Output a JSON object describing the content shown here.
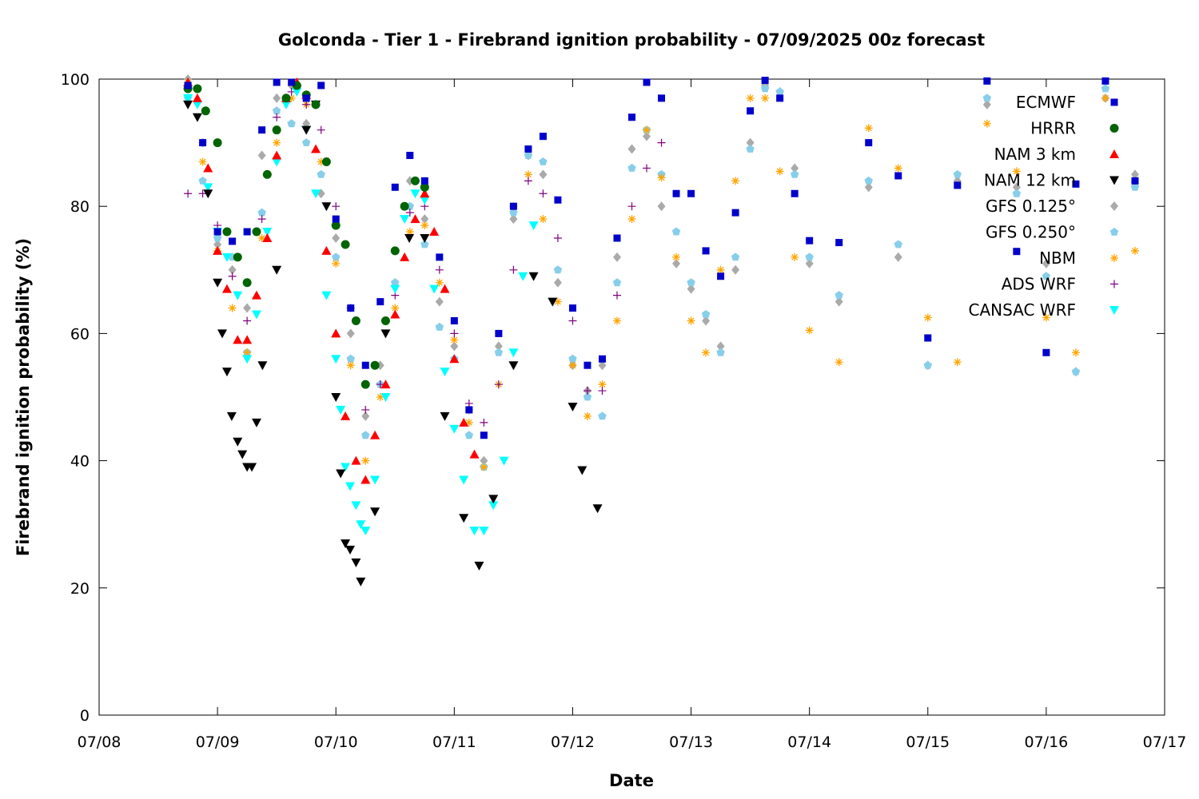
{
  "chart_data": {
    "type": "scatter",
    "title": "Golconda - Tier 1 - Firebrand ignition probability - 07/09/2025 00z forecast",
    "xlabel": "Date",
    "ylabel": "Firebrand ignition probability (%)",
    "x_ticks": [
      "07/08",
      "07/09",
      "07/10",
      "07/11",
      "07/12",
      "07/13",
      "07/14",
      "07/15",
      "07/16",
      "07/17"
    ],
    "y_ticks": [
      "0",
      "20",
      "40",
      "60",
      "80",
      "100"
    ],
    "xlim": [
      0,
      9
    ],
    "ylim": [
      0,
      100
    ],
    "x_unit": "days after 07/08 00z",
    "grid": false,
    "legend_position": "top-right",
    "series": [
      {
        "name": "ECMWF",
        "marker": "square",
        "color": "#0000cc",
        "x": [
          0.75,
          0.875,
          1.0,
          1.125,
          1.25,
          1.375,
          1.5,
          1.625,
          1.75,
          1.875,
          2.0,
          2.125,
          2.25,
          2.375,
          2.5,
          2.625,
          2.75,
          2.875,
          3.0,
          3.125,
          3.25,
          3.375,
          3.5,
          3.625,
          3.75,
          3.875,
          4.0,
          4.125,
          4.25,
          4.375,
          4.5,
          4.625,
          4.75,
          4.875,
          5.0,
          5.125,
          5.25,
          5.375,
          5.5,
          5.625,
          5.75,
          5.875,
          6.0,
          6.25,
          6.5,
          6.75,
          7.0,
          7.25,
          7.5,
          7.75,
          8.0,
          8.25,
          8.5,
          8.75
        ],
        "y": [
          99,
          90,
          76,
          74.5,
          76,
          92,
          99.5,
          99.5,
          97,
          99,
          78,
          64,
          55,
          65,
          83,
          88,
          84,
          72,
          62,
          48,
          44,
          60,
          80,
          89,
          91,
          81,
          64,
          55,
          56,
          75,
          94,
          99.5,
          97,
          82,
          82,
          73,
          69,
          79,
          95,
          99.8,
          97,
          82,
          74.6,
          74.3,
          90,
          84.8,
          59.3,
          83.3,
          99.7,
          72.9,
          57,
          83.5,
          99.7,
          84
        ]
      },
      {
        "name": "HRRR",
        "marker": "circle",
        "color": "#006400",
        "x": [
          0.75,
          0.83,
          0.9,
          1.0,
          1.08,
          1.17,
          1.25,
          1.33,
          1.42,
          1.5,
          1.58,
          1.67,
          1.75,
          1.83,
          1.92,
          2.0,
          2.08,
          2.17,
          2.25,
          2.33,
          2.42,
          2.5,
          2.58,
          2.67,
          2.75
        ],
        "y": [
          98.5,
          98.5,
          95,
          90,
          76,
          72,
          68,
          76,
          85,
          92,
          97,
          99,
          97.5,
          96,
          87,
          77,
          74,
          62,
          52,
          55,
          62,
          73,
          80,
          84,
          83
        ]
      },
      {
        "name": "NAM 3 km",
        "marker": "triangle-up",
        "color": "#ff0000",
        "x": [
          0.75,
          0.83,
          0.92,
          1.0,
          1.08,
          1.17,
          1.25,
          1.33,
          1.42,
          1.5,
          1.58,
          1.67,
          1.75,
          1.83,
          1.92,
          2.0,
          2.08,
          2.17,
          2.25,
          2.33,
          2.42,
          2.5,
          2.58,
          2.67,
          2.75,
          2.83,
          2.92,
          3.0,
          3.08,
          3.17
        ],
        "y": [
          99.5,
          97,
          86,
          73,
          67,
          59,
          59,
          66,
          75,
          88,
          97,
          99.5,
          97.5,
          89,
          73,
          60,
          47,
          40,
          37,
          44,
          52,
          63,
          72,
          78,
          82,
          76,
          67,
          56,
          46,
          41
        ]
      },
      {
        "name": "NAM 12 km",
        "marker": "triangle-down",
        "color": "#000000",
        "x": [
          0.75,
          0.83,
          0.92,
          1.0,
          1.04,
          1.08,
          1.12,
          1.17,
          1.21,
          1.25,
          1.29,
          1.33,
          1.38,
          1.5,
          1.75,
          1.83,
          1.92,
          2.0,
          2.04,
          2.08,
          2.12,
          2.17,
          2.21,
          2.33,
          2.42,
          2.62,
          2.75,
          2.92,
          3.08,
          3.21,
          3.33,
          3.5,
          3.67,
          3.83,
          4.0,
          4.08,
          4.21
        ],
        "y": [
          96,
          94,
          82,
          68,
          60,
          54,
          47,
          43,
          41,
          39,
          39,
          46,
          55,
          70,
          92,
          96,
          80,
          50,
          38,
          27,
          26,
          24,
          21,
          32,
          60,
          75,
          75,
          47,
          31,
          23.5,
          34,
          55,
          69,
          65,
          48.5,
          38.5,
          32.5
        ]
      },
      {
        "name": "GFS 0.125°",
        "marker": "diamond",
        "color": "#aaaaaa",
        "x": [
          0.75,
          0.875,
          1.0,
          1.125,
          1.25,
          1.375,
          1.5,
          1.625,
          1.75,
          1.875,
          2.0,
          2.125,
          2.25,
          2.375,
          2.5,
          2.625,
          2.75,
          2.875,
          3.0,
          3.125,
          3.25,
          3.375,
          3.5,
          3.625,
          3.75,
          3.875,
          4.0,
          4.125,
          4.25,
          4.375,
          4.5,
          4.625,
          4.75,
          4.875,
          5.0,
          5.125,
          5.25,
          5.375,
          5.5,
          5.625,
          5.75,
          5.875,
          6.0,
          6.25,
          6.5,
          6.75,
          7.0,
          7.25,
          7.5,
          7.75,
          8.0,
          8.25,
          8.5,
          8.75
        ],
        "y": [
          100,
          90,
          74,
          70,
          64,
          88,
          97,
          99,
          93,
          82,
          75,
          60,
          47,
          55,
          68,
          84,
          78,
          65,
          58,
          48,
          40,
          58,
          78,
          88,
          85,
          68,
          55,
          51,
          55,
          72,
          89,
          91,
          80,
          71,
          67,
          62,
          58,
          70,
          90,
          99,
          98,
          86,
          71,
          65,
          83,
          72,
          55,
          84,
          96,
          83,
          71,
          54,
          97,
          85
        ]
      },
      {
        "name": "GFS 0.250°",
        "marker": "pentagon",
        "color": "#87ceeb",
        "x": [
          0.75,
          0.875,
          1.0,
          1.125,
          1.25,
          1.375,
          1.5,
          1.625,
          1.75,
          1.875,
          2.0,
          2.125,
          2.25,
          2.375,
          2.5,
          2.625,
          2.75,
          2.875,
          3.0,
          3.125,
          3.25,
          3.375,
          3.5,
          3.625,
          3.75,
          3.875,
          4.0,
          4.125,
          4.25,
          4.375,
          4.5,
          4.625,
          4.75,
          4.875,
          5.0,
          5.125,
          5.25,
          5.375,
          5.5,
          5.625,
          5.75,
          5.875,
          6.0,
          6.25,
          6.5,
          6.75,
          7.0,
          7.25,
          7.5,
          7.75,
          8.0,
          8.25,
          8.5,
          8.75
        ],
        "y": [
          97,
          84,
          75,
          72,
          57,
          79,
          95,
          93,
          90,
          85,
          72,
          56,
          44,
          52,
          68,
          80,
          74,
          61,
          56,
          44,
          39,
          57,
          79,
          88,
          87,
          70,
          56,
          50,
          47,
          68,
          86,
          92,
          85,
          76,
          68,
          63,
          57,
          72,
          89,
          98.5,
          98,
          85,
          72,
          66,
          84,
          74,
          55,
          85,
          97,
          82,
          69,
          54,
          98.5,
          83
        ]
      },
      {
        "name": "NBM",
        "marker": "asterisk",
        "color": "#ffa500",
        "x": [
          0.75,
          0.875,
          1.0,
          1.125,
          1.25,
          1.375,
          1.5,
          1.625,
          1.75,
          1.875,
          2.0,
          2.125,
          2.25,
          2.375,
          2.5,
          2.625,
          2.75,
          2.875,
          3.0,
          3.125,
          3.25,
          3.375,
          3.5,
          3.625,
          3.75,
          3.875,
          4.0,
          4.125,
          4.25,
          4.375,
          4.5,
          4.625,
          4.75,
          4.875,
          5.0,
          5.125,
          5.25,
          5.375,
          5.5,
          5.625,
          5.75,
          5.875,
          6.0,
          6.25,
          6.5,
          6.75,
          7.0,
          7.25,
          7.5,
          7.75,
          8.0,
          8.25,
          8.5,
          8.75
        ],
        "y": [
          99.5,
          87,
          73,
          64,
          57,
          75,
          90,
          97,
          96,
          87,
          71,
          55,
          40,
          50,
          64,
          76,
          77,
          68,
          59,
          46,
          39,
          52,
          80,
          85,
          78,
          65,
          55,
          47,
          52,
          62,
          78,
          92,
          84.5,
          72,
          62,
          57,
          70,
          84,
          97,
          97,
          85.5,
          72,
          60.5,
          55.5,
          92.3,
          86,
          62.5,
          55.5,
          93,
          85.5,
          62.5,
          57,
          97,
          73
        ]
      },
      {
        "name": "ADS WRF",
        "marker": "plus",
        "color": "#800080",
        "x": [
          0.75,
          0.875,
          1.0,
          1.125,
          1.25,
          1.375,
          1.5,
          1.625,
          1.75,
          1.875,
          2.0,
          2.125,
          2.25,
          2.375,
          2.5,
          2.625,
          2.75,
          2.875,
          3.0,
          3.125,
          3.25,
          3.375,
          3.5,
          3.625,
          3.75,
          3.875,
          4.0,
          4.125,
          4.25,
          4.375,
          4.5,
          4.625,
          4.75
        ],
        "y": [
          82,
          82,
          77,
          69,
          62,
          78,
          94,
          98,
          96,
          92,
          80,
          64,
          48,
          52,
          66,
          79,
          80,
          70,
          60,
          49,
          46,
          52,
          70,
          84,
          82,
          75,
          62,
          51,
          51,
          66,
          80,
          86,
          90
        ]
      },
      {
        "name": "CANSAC WRF",
        "marker": "triangle-down",
        "color": "#00ffff",
        "x": [
          0.75,
          0.83,
          0.92,
          1.0,
          1.08,
          1.17,
          1.25,
          1.33,
          1.42,
          1.5,
          1.58,
          1.67,
          1.75,
          1.83,
          1.92,
          2.0,
          2.04,
          2.08,
          2.12,
          2.17,
          2.21,
          2.25,
          2.33,
          2.42,
          2.5,
          2.58,
          2.67,
          2.75,
          2.83,
          2.92,
          3.0,
          3.08,
          3.17,
          3.25,
          3.33,
          3.42,
          3.5,
          3.58,
          3.67
        ],
        "y": [
          97,
          96,
          83,
          76,
          72,
          66,
          56,
          63,
          76,
          87,
          96,
          98,
          92,
          82,
          66,
          56,
          48,
          39,
          36,
          33,
          30,
          29,
          37,
          50,
          67,
          78,
          82,
          81,
          67,
          54,
          45,
          37,
          29,
          29,
          33,
          40,
          57,
          69,
          77
        ]
      }
    ]
  }
}
